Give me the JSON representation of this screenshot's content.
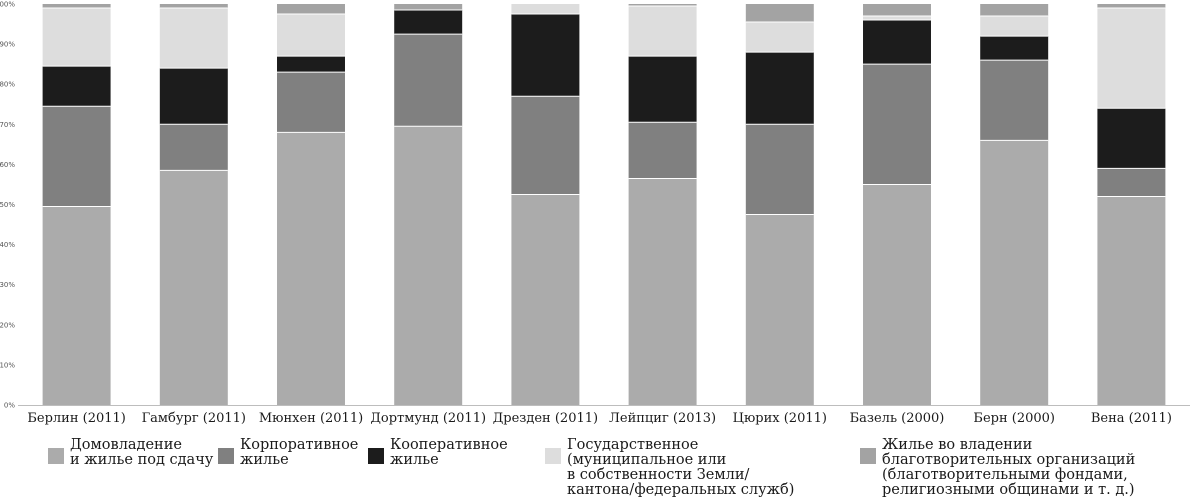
{
  "chart_data": {
    "type": "bar",
    "stacked": true,
    "percent": true,
    "title": "",
    "xlabel": "",
    "ylabel": "",
    "ylim": [
      0,
      100
    ],
    "yticks": [
      "0%",
      "10%",
      "20%",
      "30%",
      "40%",
      "50%",
      "60%",
      "70%",
      "80%",
      "90%",
      "100%"
    ],
    "grid": false,
    "legend_position": "bottom",
    "categories": [
      "Берлин (2011)",
      "Гамбург (2011)",
      "Мюнхен (2011)",
      "Дортмунд (2011)",
      "Дрезден (2011)",
      "Лейпциг (2013)",
      "Цюрих (2011)",
      "Базель (2000)",
      "Берн (2000)",
      "Вена (2011)"
    ],
    "series": [
      {
        "name": "Домовладение\nи жилье под сдачу",
        "color": "#ababab",
        "values": [
          49.5,
          58.5,
          68,
          69.5,
          52.5,
          56.5,
          47.5,
          55,
          66,
          52
        ]
      },
      {
        "name": "Корпоративное\nжилье",
        "color": "#808080",
        "values": [
          25,
          11.5,
          15,
          23,
          24.5,
          14,
          22.5,
          30,
          20,
          7
        ]
      },
      {
        "name": "Кооперативное\nжилье",
        "color": "#1c1c1c",
        "values": [
          10,
          14,
          4,
          6,
          20.5,
          16.5,
          18,
          11,
          6,
          15
        ]
      },
      {
        "name": "Государственное\n(муниципальное или\nв собственности Земли/\nкантона/федеральных служб)",
        "color": "#dddddd",
        "values": [
          14.5,
          15,
          10.5,
          0,
          2.5,
          12.5,
          7.5,
          1,
          5,
          25
        ]
      },
      {
        "name": "Жилье во владении\nблаготворительных организаций\n(благотворительными фондами,\nрелигиозными общинами и т. д.)",
        "color": "#a3a3a3",
        "values": [
          1,
          1,
          2.5,
          1.5,
          0,
          0.5,
          4.5,
          3,
          3,
          1
        ]
      }
    ]
  }
}
